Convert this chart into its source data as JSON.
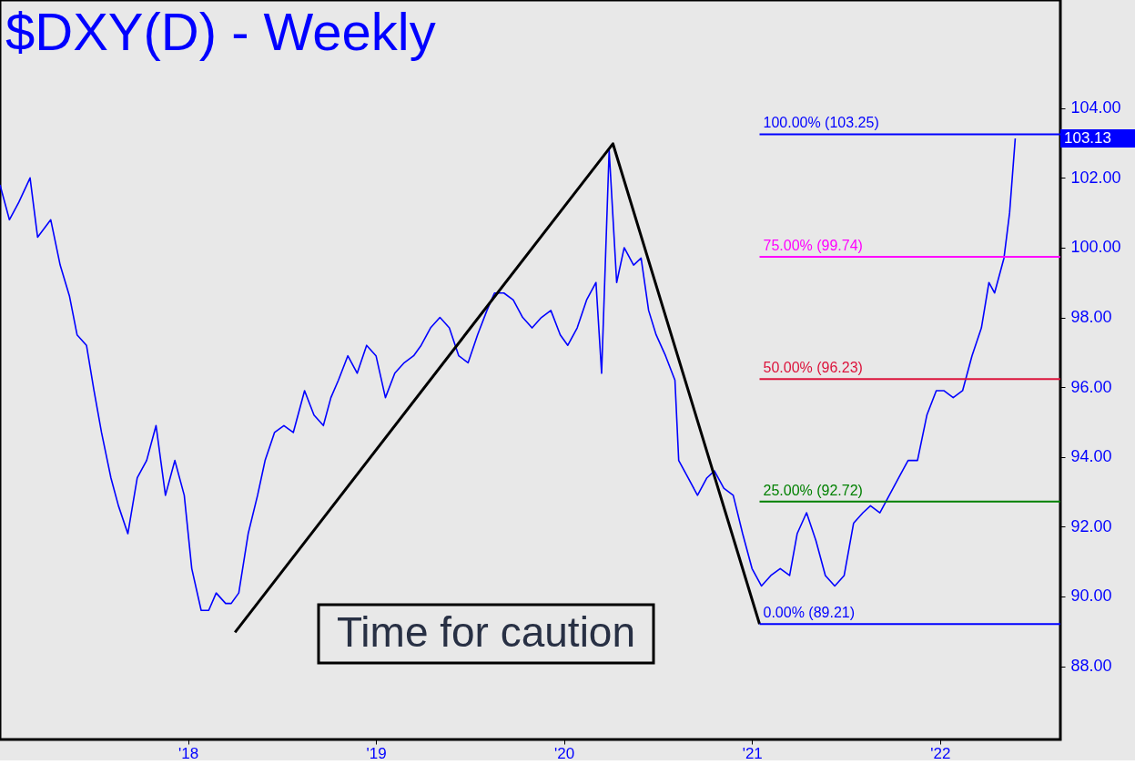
{
  "chart_data": {
    "type": "line",
    "title": "$DXY(D) - Weekly",
    "xlim": [
      2017.0,
      2022.64
    ],
    "xticks": [
      {
        "value": 2018,
        "label": "'18"
      },
      {
        "value": 2019,
        "label": "'19"
      },
      {
        "value": 2020,
        "label": "'20"
      },
      {
        "value": 2021,
        "label": "'21"
      },
      {
        "value": 2022,
        "label": "'22"
      }
    ],
    "ylim": [
      85.9,
      107.1
    ],
    "yticks": [
      {
        "value": 88,
        "label": "88.00"
      },
      {
        "value": 90,
        "label": "90.00"
      },
      {
        "value": 92,
        "label": "92.00"
      },
      {
        "value": 94,
        "label": "94.00"
      },
      {
        "value": 96,
        "label": "96.00"
      },
      {
        "value": 98,
        "label": "98.00"
      },
      {
        "value": 100,
        "label": "100.00"
      },
      {
        "value": 102,
        "label": "102.00"
      },
      {
        "value": 104,
        "label": "104.00"
      }
    ],
    "grid": false,
    "series": [
      {
        "color": "#0000ff",
        "x": [
          2017.0,
          2017.05,
          2017.1,
          2017.16,
          2017.2,
          2017.27,
          2017.32,
          2017.37,
          2017.41,
          2017.46,
          2017.5,
          2017.54,
          2017.59,
          2017.63,
          2017.68,
          2017.73,
          2017.78,
          2017.83,
          2017.88,
          2017.93,
          2017.98,
          2018.02,
          2018.07,
          2018.11,
          2018.15,
          2018.2,
          2018.23,
          2018.27,
          2018.32,
          2018.37,
          2018.41,
          2018.46,
          2018.51,
          2018.56,
          2018.62,
          2018.67,
          2018.72,
          2018.76,
          2018.8,
          2018.85,
          2018.9,
          2018.95,
          2019.0,
          2019.05,
          2019.1,
          2019.15,
          2019.2,
          2019.24,
          2019.29,
          2019.34,
          2019.39,
          2019.44,
          2019.49,
          2019.54,
          2019.59,
          2019.63,
          2019.68,
          2019.73,
          2019.78,
          2019.83,
          2019.88,
          2019.93,
          2019.98,
          2020.02,
          2020.07,
          2020.12,
          2020.17,
          2020.2,
          2020.24,
          2020.28,
          2020.32,
          2020.37,
          2020.41,
          2020.45,
          2020.49,
          2020.54,
          2020.59,
          2020.61,
          2020.66,
          2020.71,
          2020.76,
          2020.8,
          2020.85,
          2020.9,
          2020.95,
          2021.0,
          2021.05,
          2021.1,
          2021.15,
          2021.2,
          2021.24,
          2021.29,
          2021.34,
          2021.39,
          2021.44,
          2021.49,
          2021.54,
          2021.59,
          2021.63,
          2021.68,
          2021.73,
          2021.78,
          2021.83,
          2021.88,
          2021.93,
          2021.98,
          2022.02,
          2022.07,
          2022.12,
          2022.17,
          2022.22,
          2022.26,
          2022.29,
          2022.34,
          2022.37,
          2022.4
        ],
        "values": [
          101.8,
          100.8,
          101.3,
          102.0,
          100.3,
          100.8,
          99.5,
          98.6,
          97.5,
          97.2,
          95.9,
          94.7,
          93.4,
          92.6,
          91.8,
          93.4,
          93.9,
          94.9,
          92.9,
          93.9,
          92.9,
          90.8,
          89.6,
          89.6,
          90.1,
          89.8,
          89.8,
          90.1,
          91.8,
          92.9,
          93.9,
          94.7,
          94.9,
          94.7,
          95.9,
          95.2,
          94.9,
          95.7,
          96.2,
          96.9,
          96.4,
          97.2,
          96.9,
          95.7,
          96.4,
          96.7,
          96.9,
          97.2,
          97.7,
          98.0,
          97.7,
          96.9,
          96.7,
          97.5,
          98.2,
          98.7,
          98.7,
          98.5,
          98.0,
          97.7,
          98.0,
          98.2,
          97.5,
          97.2,
          97.7,
          98.5,
          99.0,
          96.4,
          102.8,
          99.0,
          100.0,
          99.5,
          99.7,
          98.2,
          97.5,
          96.9,
          96.2,
          93.9,
          93.4,
          92.9,
          93.4,
          93.6,
          93.1,
          92.9,
          91.8,
          90.8,
          90.3,
          90.6,
          90.8,
          90.6,
          91.8,
          92.4,
          91.6,
          90.6,
          90.3,
          90.6,
          92.1,
          92.4,
          92.6,
          92.4,
          92.9,
          93.4,
          93.9,
          93.9,
          95.2,
          95.9,
          95.9,
          95.7,
          95.9,
          96.9,
          97.7,
          99.0,
          98.7,
          99.7,
          101.0,
          103.13
        ]
      },
      {
        "color": "#000000",
        "x": [
          2018.25,
          2020.26,
          2021.04
        ],
        "values": [
          88.97,
          102.98,
          89.21
        ]
      }
    ],
    "ref_lines": [
      {
        "axis": "y",
        "value": 103.25,
        "label": "100.00% (103.25)",
        "color": "#0000ff"
      },
      {
        "axis": "y",
        "value": 99.74,
        "label": "75.00% (99.74)",
        "color": "#ff00ff"
      },
      {
        "axis": "y",
        "value": 96.23,
        "label": "50.00% (96.23)",
        "color": "#dc143c"
      },
      {
        "axis": "y",
        "value": 92.72,
        "label": "25.00% (92.72)",
        "color": "#008000"
      },
      {
        "axis": "y",
        "value": 89.21,
        "label": "0.00% (89.21)",
        "color": "#0000ff"
      }
    ],
    "annotations": [
      "103.13",
      "Time for caution"
    ]
  }
}
